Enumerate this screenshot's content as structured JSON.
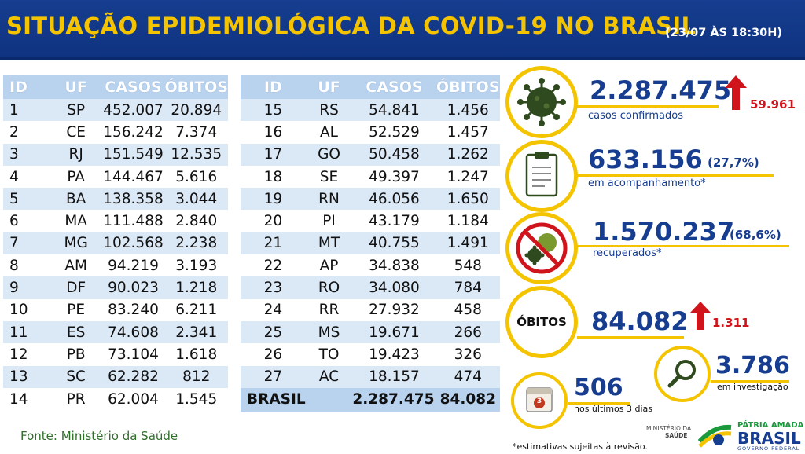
{
  "header": {
    "title": "SITUAÇÃO EPIDEMIOLÓGICA DA COVID-19 NO BRASIL",
    "date": "(23/07 ÀS 18:30H)"
  },
  "table": {
    "headers": [
      "ID",
      "UF",
      "CASOS",
      "ÓBITOS"
    ],
    "left_rows": [
      [
        "1",
        "SP",
        "452.007",
        "20.894"
      ],
      [
        "2",
        "CE",
        "156.242",
        "7.374"
      ],
      [
        "3",
        "RJ",
        "151.549",
        "12.535"
      ],
      [
        "4",
        "PA",
        "144.467",
        "5.616"
      ],
      [
        "5",
        "BA",
        "138.358",
        "3.044"
      ],
      [
        "6",
        "MA",
        "111.488",
        "2.840"
      ],
      [
        "7",
        "MG",
        "102.568",
        "2.238"
      ],
      [
        "8",
        "AM",
        "94.219",
        "3.193"
      ],
      [
        "9",
        "DF",
        "90.023",
        "1.218"
      ],
      [
        "10",
        "PE",
        "83.240",
        "6.211"
      ],
      [
        "11",
        "ES",
        "74.608",
        "2.341"
      ],
      [
        "12",
        "PB",
        "73.104",
        "1.618"
      ],
      [
        "13",
        "SC",
        "62.282",
        "812"
      ],
      [
        "14",
        "PR",
        "62.004",
        "1.545"
      ]
    ],
    "right_rows": [
      [
        "15",
        "RS",
        "54.841",
        "1.456"
      ],
      [
        "16",
        "AL",
        "52.529",
        "1.457"
      ],
      [
        "17",
        "GO",
        "50.458",
        "1.262"
      ],
      [
        "18",
        "SE",
        "49.397",
        "1.247"
      ],
      [
        "19",
        "RN",
        "46.056",
        "1.650"
      ],
      [
        "20",
        "PI",
        "43.179",
        "1.184"
      ],
      [
        "21",
        "MT",
        "40.755",
        "1.491"
      ],
      [
        "22",
        "AP",
        "34.838",
        "548"
      ],
      [
        "23",
        "RO",
        "34.080",
        "784"
      ],
      [
        "24",
        "RR",
        "27.932",
        "458"
      ],
      [
        "25",
        "MS",
        "19.671",
        "266"
      ],
      [
        "26",
        "TO",
        "19.423",
        "326"
      ],
      [
        "27",
        "AC",
        "18.157",
        "474"
      ]
    ],
    "total": {
      "label": "BRASIL",
      "casos": "2.287.475",
      "obitos": "84.082"
    }
  },
  "source": "Fonte: Ministério da Saúde",
  "stats": {
    "confirmed": {
      "value": "2.287.475",
      "label": "casos confirmados",
      "increase": "59.961",
      "icon": "virus-icon"
    },
    "monitoring": {
      "value": "633.156",
      "pct": "(27,7%)",
      "label": "em acompanhamento*",
      "icon": "clipboard-icon"
    },
    "recovered": {
      "value": "1.570.237",
      "pct": "(68,6%)",
      "label": "recuperados*",
      "icon": "virus-crossed-icon"
    },
    "deaths": {
      "circle_label": "ÓBITOS",
      "value": "84.082",
      "increase": "1.311"
    },
    "investigation": {
      "value": "3.786",
      "label": "em investigação",
      "icon": "magnifier-icon"
    },
    "recent": {
      "value": "506",
      "label": "nos últimos 3 dias",
      "calendar_num": "3",
      "icon": "calendar-icon"
    }
  },
  "footnote": "*estimativas sujeitas à revisão.",
  "logos": {
    "ministry_line1": "MINISTÉRIO DA",
    "ministry_line2": "SAÚDE",
    "patria": "PÁTRIA AMADA",
    "brasil": "BRASIL",
    "governo": "GOVERNO FEDERAL"
  },
  "colors": {
    "brand_blue": "#163d8f",
    "accent_yellow": "#f5c400",
    "alert_red": "#d0141c",
    "table_header": "#b9d3ef",
    "row_alt": "#dbe8f6"
  }
}
